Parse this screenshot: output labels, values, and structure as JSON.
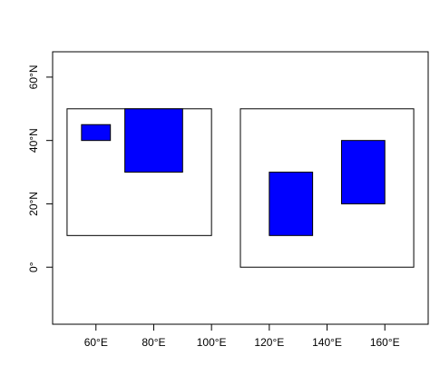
{
  "chart_data": {
    "type": "rect",
    "xlim": [
      45,
      175
    ],
    "ylim": [
      -18,
      68
    ],
    "xticks": [
      {
        "value": 60,
        "label": "60°E"
      },
      {
        "value": 80,
        "label": "80°E"
      },
      {
        "value": 100,
        "label": "100°E"
      },
      {
        "value": 120,
        "label": "120°E"
      },
      {
        "value": 140,
        "label": "140°E"
      },
      {
        "value": 160,
        "label": "160°E"
      }
    ],
    "yticks": [
      {
        "value": 0,
        "label": "0°"
      },
      {
        "value": 20,
        "label": "20°N"
      },
      {
        "value": 40,
        "label": "40°N"
      },
      {
        "value": 60,
        "label": "60°N"
      }
    ],
    "rectangles": [
      {
        "xmin": 50,
        "xmax": 100,
        "ymin": 10,
        "ymax": 50,
        "color": "#ffffff"
      },
      {
        "xmin": 110,
        "xmax": 170,
        "ymin": 0,
        "ymax": 50,
        "color": "#ffffff"
      },
      {
        "xmin": 55,
        "xmax": 65,
        "ymin": 40,
        "ymax": 45,
        "color": "#0000ff"
      },
      {
        "xmin": 70,
        "xmax": 90,
        "ymin": 30,
        "ymax": 50,
        "color": "#0000ff"
      },
      {
        "xmin": 120,
        "xmax": 135,
        "ymin": 10,
        "ymax": 30,
        "color": "#0000ff"
      },
      {
        "xmin": 145,
        "xmax": 160,
        "ymin": 20,
        "ymax": 40,
        "color": "#0000ff"
      }
    ]
  }
}
